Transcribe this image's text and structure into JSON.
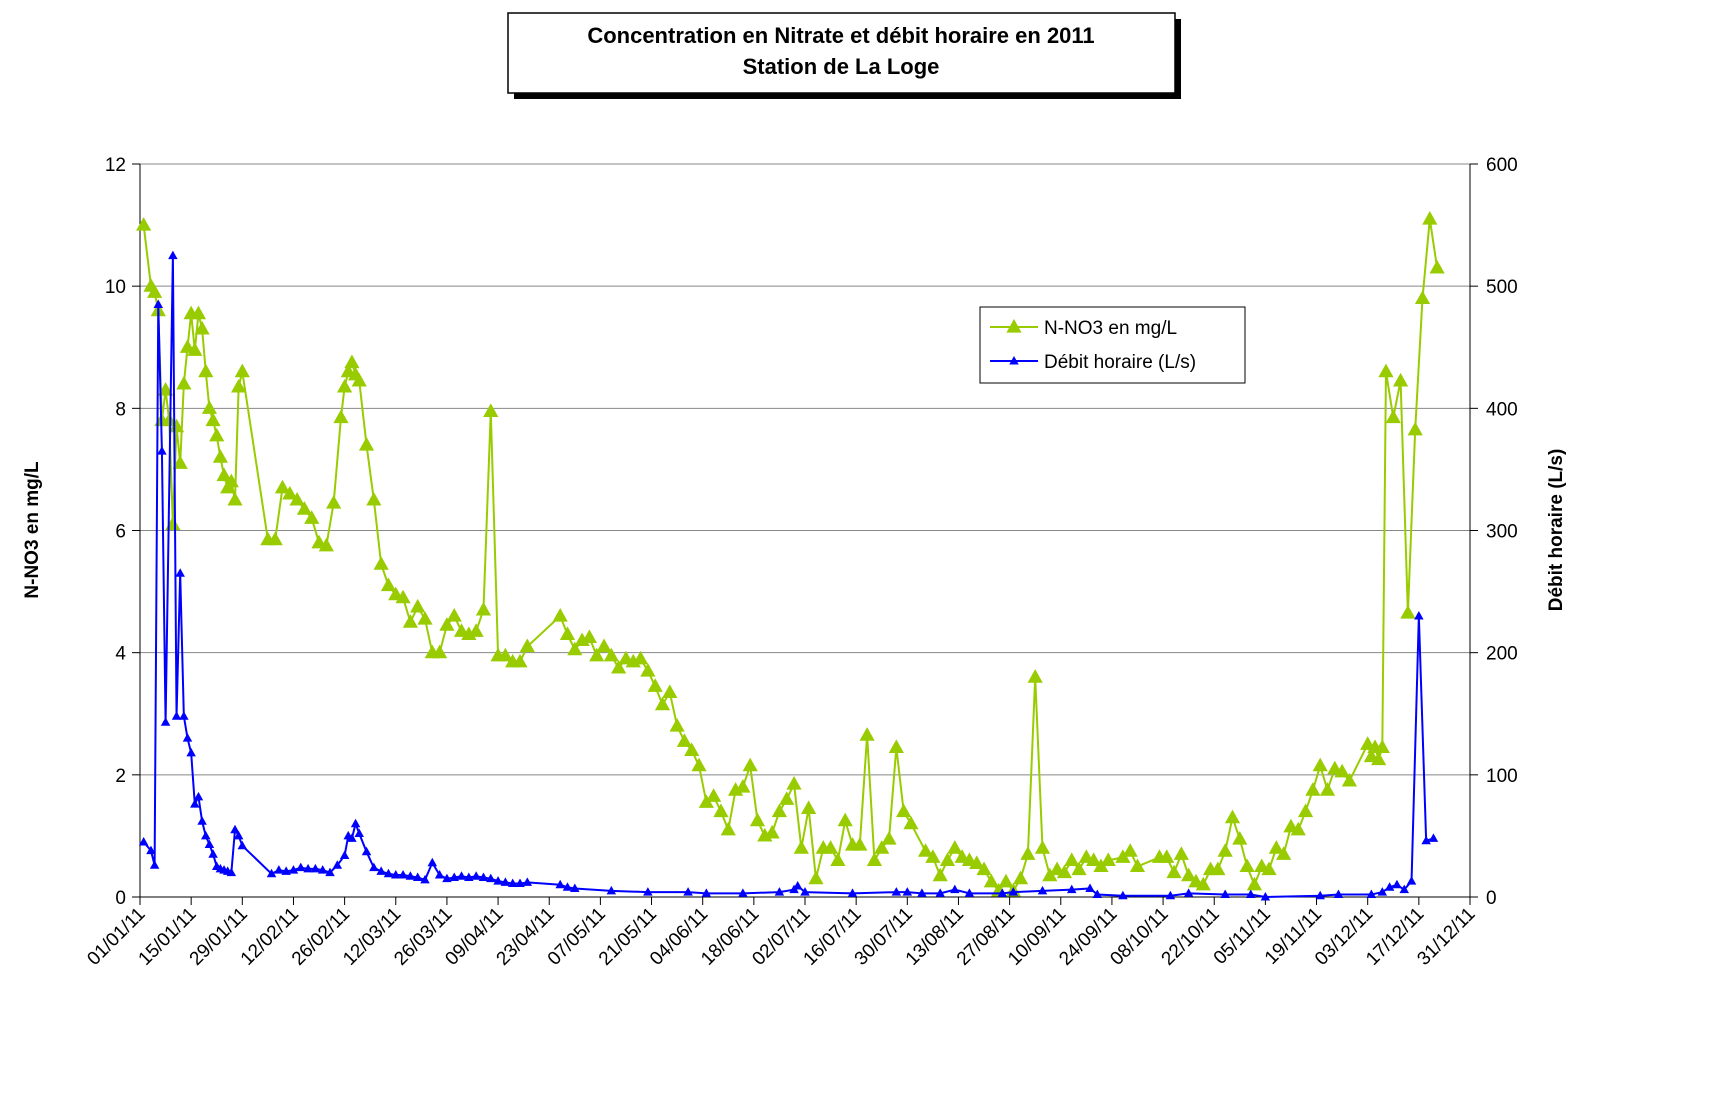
{
  "chart_data": {
    "type": "line",
    "title": "Concentration en Nitrate et débit horaire en 2011",
    "subtitle": "Station de La Loge",
    "ylabel": "N-NO3 en mg/L",
    "y2label": "Débit horaire (L/s)",
    "xlim": [
      "2011-01-01",
      "2011-12-31"
    ],
    "xticks": [
      {
        "value": "2011-01-01",
        "label": "01/01/11"
      },
      {
        "value": "2011-01-15",
        "label": "15/01/11"
      },
      {
        "value": "2011-01-29",
        "label": "29/01/11"
      },
      {
        "value": "2011-02-12",
        "label": "12/02/11"
      },
      {
        "value": "2011-02-26",
        "label": "26/02/11"
      },
      {
        "value": "2011-03-12",
        "label": "12/03/11"
      },
      {
        "value": "2011-03-26",
        "label": "26/03/11"
      },
      {
        "value": "2011-04-09",
        "label": "09/04/11"
      },
      {
        "value": "2011-04-23",
        "label": "23/04/11"
      },
      {
        "value": "2011-05-07",
        "label": "07/05/11"
      },
      {
        "value": "2011-05-21",
        "label": "21/05/11"
      },
      {
        "value": "2011-06-04",
        "label": "04/06/11"
      },
      {
        "value": "2011-06-18",
        "label": "18/06/11"
      },
      {
        "value": "2011-07-02",
        "label": "02/07/11"
      },
      {
        "value": "2011-07-16",
        "label": "16/07/11"
      },
      {
        "value": "2011-07-30",
        "label": "30/07/11"
      },
      {
        "value": "2011-08-13",
        "label": "13/08/11"
      },
      {
        "value": "2011-08-27",
        "label": "27/08/11"
      },
      {
        "value": "2011-09-10",
        "label": "10/09/11"
      },
      {
        "value": "2011-09-24",
        "label": "24/09/11"
      },
      {
        "value": "2011-10-08",
        "label": "08/10/11"
      },
      {
        "value": "2011-10-22",
        "label": "22/10/11"
      },
      {
        "value": "2011-11-05",
        "label": "05/11/11"
      },
      {
        "value": "2011-11-19",
        "label": "19/11/11"
      },
      {
        "value": "2011-12-03",
        "label": "03/12/11"
      },
      {
        "value": "2011-12-17",
        "label": "17/12/11"
      },
      {
        "value": "2011-12-31",
        "label": "31/12/11"
      }
    ],
    "ylim": [
      0,
      12
    ],
    "yticks": [
      0,
      2,
      4,
      6,
      8,
      10,
      12
    ],
    "y2lim": [
      0,
      600
    ],
    "y2ticks": [
      0,
      100,
      200,
      300,
      400,
      500,
      600
    ],
    "grid": true,
    "legend": "upper right",
    "series": [
      {
        "name": "N-NO3 en mg/L",
        "color": "#99cc00",
        "x": [
          "2011-01-02",
          "2011-01-04",
          "2011-01-05",
          "2011-01-06",
          "2011-01-07",
          "2011-01-08",
          "2011-01-09",
          "2011-01-10",
          "2011-01-11",
          "2011-01-12",
          "2011-01-13",
          "2011-01-14",
          "2011-01-15",
          "2011-01-16",
          "2011-01-17",
          "2011-01-18",
          "2011-01-19",
          "2011-01-20",
          "2011-01-21",
          "2011-01-22",
          "2011-01-23",
          "2011-01-24",
          "2011-01-25",
          "2011-01-26",
          "2011-01-27",
          "2011-01-28",
          "2011-01-29",
          "2011-02-05",
          "2011-02-07",
          "2011-02-09",
          "2011-02-11",
          "2011-02-13",
          "2011-02-15",
          "2011-02-17",
          "2011-02-19",
          "2011-02-21",
          "2011-02-23",
          "2011-02-25",
          "2011-02-26",
          "2011-02-27",
          "2011-02-28",
          "2011-03-01",
          "2011-03-02",
          "2011-03-04",
          "2011-03-06",
          "2011-03-08",
          "2011-03-10",
          "2011-03-12",
          "2011-03-14",
          "2011-03-16",
          "2011-03-18",
          "2011-03-20",
          "2011-03-22",
          "2011-03-24",
          "2011-03-26",
          "2011-03-28",
          "2011-03-30",
          "2011-04-01",
          "2011-04-03",
          "2011-04-05",
          "2011-04-07",
          "2011-04-09",
          "2011-04-11",
          "2011-04-13",
          "2011-04-15",
          "2011-04-17",
          "2011-04-26",
          "2011-04-28",
          "2011-04-30",
          "2011-05-02",
          "2011-05-04",
          "2011-05-06",
          "2011-05-08",
          "2011-05-10",
          "2011-05-12",
          "2011-05-14",
          "2011-05-16",
          "2011-05-18",
          "2011-05-20",
          "2011-05-22",
          "2011-05-24",
          "2011-05-26",
          "2011-05-28",
          "2011-05-30",
          "2011-06-01",
          "2011-06-03",
          "2011-06-05",
          "2011-06-07",
          "2011-06-09",
          "2011-06-11",
          "2011-06-13",
          "2011-06-15",
          "2011-06-17",
          "2011-06-19",
          "2011-06-21",
          "2011-06-23",
          "2011-06-25",
          "2011-06-27",
          "2011-06-29",
          "2011-07-01",
          "2011-07-03",
          "2011-07-05",
          "2011-07-07",
          "2011-07-09",
          "2011-07-11",
          "2011-07-13",
          "2011-07-15",
          "2011-07-17",
          "2011-07-19",
          "2011-07-21",
          "2011-07-23",
          "2011-07-25",
          "2011-07-27",
          "2011-07-29",
          "2011-07-31",
          "2011-08-04",
          "2011-08-06",
          "2011-08-08",
          "2011-08-10",
          "2011-08-12",
          "2011-08-14",
          "2011-08-16",
          "2011-08-18",
          "2011-08-20",
          "2011-08-22",
          "2011-08-24",
          "2011-08-26",
          "2011-08-28",
          "2011-08-30",
          "2011-09-01",
          "2011-09-03",
          "2011-09-05",
          "2011-09-07",
          "2011-09-09",
          "2011-09-11",
          "2011-09-13",
          "2011-09-15",
          "2011-09-17",
          "2011-09-19",
          "2011-09-21",
          "2011-09-23",
          "2011-09-27",
          "2011-09-29",
          "2011-10-01",
          "2011-10-07",
          "2011-10-09",
          "2011-10-11",
          "2011-10-13",
          "2011-10-15",
          "2011-10-17",
          "2011-10-19",
          "2011-10-21",
          "2011-10-23",
          "2011-10-25",
          "2011-10-27",
          "2011-10-29",
          "2011-10-31",
          "2011-11-02",
          "2011-11-04",
          "2011-11-06",
          "2011-11-08",
          "2011-11-10",
          "2011-11-12",
          "2011-11-14",
          "2011-11-16",
          "2011-11-18",
          "2011-11-20",
          "2011-11-22",
          "2011-11-24",
          "2011-11-26",
          "2011-11-28",
          "2011-12-03",
          "2011-12-04",
          "2011-12-05",
          "2011-12-06",
          "2011-12-07",
          "2011-12-08",
          "2011-12-10",
          "2011-12-12",
          "2011-12-14",
          "2011-12-16",
          "2011-12-18",
          "2011-12-20",
          "2011-12-22"
        ],
        "values": [
          11.0,
          10.0,
          9.9,
          9.6,
          7.8,
          8.3,
          7.8,
          6.1,
          7.7,
          7.1,
          8.4,
          9.0,
          9.55,
          8.95,
          9.55,
          9.3,
          8.6,
          8.0,
          7.8,
          7.55,
          7.2,
          6.9,
          6.7,
          6.8,
          6.5,
          8.35,
          8.6,
          5.85,
          5.85,
          6.7,
          6.6,
          6.5,
          6.35,
          6.2,
          5.8,
          5.75,
          6.45,
          7.85,
          8.35,
          8.6,
          8.75,
          8.55,
          8.45,
          7.4,
          6.5,
          5.45,
          5.1,
          4.95,
          4.9,
          4.5,
          4.75,
          4.55,
          4.0,
          4.0,
          4.45,
          4.6,
          4.35,
          4.3,
          4.35,
          4.7,
          7.95,
          3.95,
          3.95,
          3.85,
          3.85,
          4.1,
          4.6,
          4.3,
          4.05,
          4.2,
          4.25,
          3.95,
          4.1,
          3.95,
          3.75,
          3.9,
          3.85,
          3.9,
          3.7,
          3.45,
          3.15,
          3.35,
          2.8,
          2.55,
          2.4,
          2.15,
          1.55,
          1.65,
          1.4,
          1.1,
          1.75,
          1.8,
          2.15,
          1.25,
          1.0,
          1.05,
          1.4,
          1.6,
          1.85,
          0.8,
          1.45,
          0.3,
          0.8,
          0.8,
          0.6,
          1.25,
          0.85,
          0.85,
          2.65,
          0.6,
          0.8,
          0.95,
          2.45,
          1.4,
          1.2,
          0.75,
          0.65,
          0.35,
          0.6,
          0.8,
          0.65,
          0.6,
          0.55,
          0.45,
          0.25,
          0.1,
          0.25,
          0.1,
          0.3,
          0.7,
          3.6,
          0.8,
          0.35,
          0.45,
          0.4,
          0.6,
          0.45,
          0.65,
          0.6,
          0.5,
          0.6,
          0.65,
          0.75,
          0.5,
          0.65,
          0.65,
          0.4,
          0.7,
          0.35,
          0.25,
          0.2,
          0.45,
          0.45,
          0.75,
          1.3,
          0.95,
          0.5,
          0.2,
          0.5,
          0.45,
          0.8,
          0.7,
          1.15,
          1.1,
          1.4,
          1.75,
          2.15,
          1.75,
          2.1,
          2.05,
          1.9,
          2.5,
          2.3,
          2.45,
          2.25,
          2.45,
          8.6,
          7.85,
          8.45,
          4.65,
          7.65,
          9.8,
          11.1,
          10.3
        ]
      },
      {
        "name": "Débit horaire (L/s)",
        "color": "#0000ff",
        "axis": "y2",
        "x": [
          "2011-01-02",
          "2011-01-04",
          "2011-01-05",
          "2011-01-06",
          "2011-01-07",
          "2011-01-08",
          "2011-01-10",
          "2011-01-11",
          "2011-01-12",
          "2011-01-13",
          "2011-01-14",
          "2011-01-15",
          "2011-01-16",
          "2011-01-17",
          "2011-01-18",
          "2011-01-19",
          "2011-01-20",
          "2011-01-21",
          "2011-01-22",
          "2011-01-23",
          "2011-01-24",
          "2011-01-25",
          "2011-01-26",
          "2011-01-27",
          "2011-01-28",
          "2011-01-29",
          "2011-02-06",
          "2011-02-08",
          "2011-02-10",
          "2011-02-12",
          "2011-02-14",
          "2011-02-16",
          "2011-02-18",
          "2011-02-20",
          "2011-02-22",
          "2011-02-24",
          "2011-02-26",
          "2011-02-27",
          "2011-02-28",
          "2011-03-01",
          "2011-03-02",
          "2011-03-04",
          "2011-03-06",
          "2011-03-08",
          "2011-03-10",
          "2011-03-12",
          "2011-03-14",
          "2011-03-16",
          "2011-03-18",
          "2011-03-20",
          "2011-03-22",
          "2011-03-24",
          "2011-03-26",
          "2011-03-28",
          "2011-03-30",
          "2011-04-01",
          "2011-04-03",
          "2011-04-05",
          "2011-04-07",
          "2011-04-09",
          "2011-04-11",
          "2011-04-13",
          "2011-04-15",
          "2011-04-17",
          "2011-04-26",
          "2011-04-28",
          "2011-04-30",
          "2011-05-10",
          "2011-05-20",
          "2011-05-31",
          "2011-06-05",
          "2011-06-15",
          "2011-06-25",
          "2011-06-29",
          "2011-06-30",
          "2011-07-02",
          "2011-07-15",
          "2011-07-27",
          "2011-07-30",
          "2011-08-03",
          "2011-08-08",
          "2011-08-12",
          "2011-08-16",
          "2011-08-25",
          "2011-08-28",
          "2011-09-05",
          "2011-09-13",
          "2011-09-18",
          "2011-09-20",
          "2011-09-27",
          "2011-10-10",
          "2011-10-15",
          "2011-10-25",
          "2011-11-01",
          "2011-11-05",
          "2011-11-20",
          "2011-11-25",
          "2011-12-04",
          "2011-12-07",
          "2011-12-09",
          "2011-12-11",
          "2011-12-13",
          "2011-12-15",
          "2011-12-17",
          "2011-12-19",
          "2011-12-21"
        ],
        "values": [
          45,
          38,
          26,
          485,
          365,
          143,
          525,
          148,
          265,
          148,
          130,
          118,
          76,
          82,
          62,
          50,
          43,
          35,
          25,
          23,
          22,
          21,
          20,
          55,
          50,
          42,
          19,
          22,
          21,
          22,
          24,
          23,
          23,
          22,
          20,
          26,
          34,
          50,
          48,
          60,
          52,
          37,
          24,
          21,
          19,
          18,
          18,
          17,
          16,
          14,
          28,
          18,
          15,
          16,
          17,
          16,
          17,
          16,
          15,
          13,
          12,
          11,
          11,
          12,
          10,
          8,
          7,
          5,
          4,
          4,
          3,
          3,
          4,
          6,
          9,
          4,
          3,
          4,
          4,
          3,
          3,
          6,
          3,
          3,
          4,
          5,
          6,
          7,
          2,
          1,
          1,
          3,
          2,
          2,
          0,
          1,
          2,
          2,
          4,
          8,
          10,
          6,
          13,
          230,
          46,
          48
        ]
      }
    ]
  }
}
